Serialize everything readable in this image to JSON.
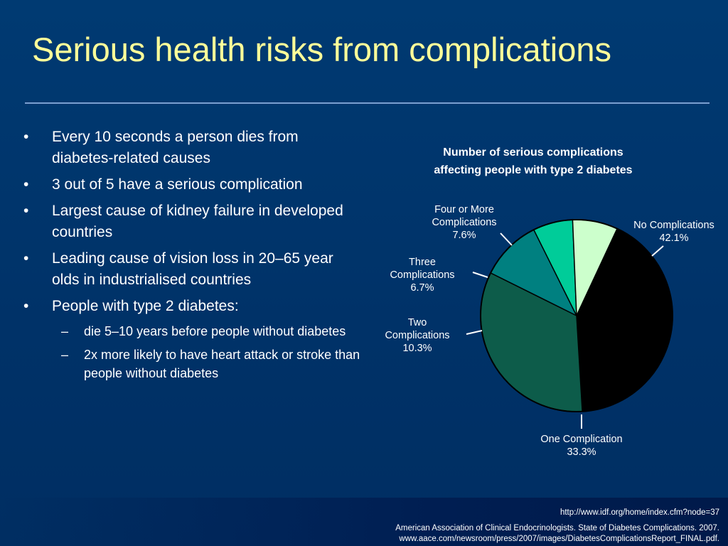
{
  "slide": {
    "title": "Serious health risks from complications",
    "bullets": [
      {
        "level": 1,
        "text": "Every 10 seconds a person dies from diabetes-related causes"
      },
      {
        "level": 1,
        "text": "3 out of 5 have a serious complication"
      },
      {
        "level": 1,
        "text": "Largest cause of kidney failure in developed countries"
      },
      {
        "level": 1,
        "text": "Leading cause of vision loss in 20–65 year olds in industrialised countries"
      },
      {
        "level": 1,
        "text": "People with type 2 diabetes:"
      },
      {
        "level": 2,
        "text": "die 5–10 years before people without diabetes"
      },
      {
        "level": 2,
        "text": "2x more likely to have heart attack or stroke than people without diabetes"
      }
    ],
    "bullet_marks": {
      "level1": "•",
      "level2": "–"
    },
    "footer": {
      "url": "http://www.idf.org/home/index.cfm?node=37",
      "citation_line1": "American Association of Clinical Endocrinologists. State of Diabetes Complications. 2007.",
      "citation_line2": "www.aace.com/newsroom/press/2007/images/DiabetesComplicationsReport_FINAL.pdf."
    },
    "colors": {
      "background": "#003268",
      "title": "#ffff99",
      "text": "#ffffff",
      "rule": "#7b9fd0"
    }
  },
  "chart_data": {
    "type": "pie",
    "title_line1": "Number of serious complications",
    "title_line2": "affecting people with type 2 diabetes",
    "slices": [
      {
        "label_lines": [
          "No Complications"
        ],
        "value": 42.1,
        "value_text": "42.1%",
        "color": "#000000"
      },
      {
        "label_lines": [
          "One Complication"
        ],
        "value": 33.3,
        "value_text": "33.3%",
        "color": "#0d5c4a"
      },
      {
        "label_lines": [
          "Two",
          "Complications"
        ],
        "value": 10.3,
        "value_text": "10.3%",
        "color": "#008080"
      },
      {
        "label_lines": [
          "Three",
          "Complications"
        ],
        "value": 6.7,
        "value_text": "6.7%",
        "color": "#00cc99"
      },
      {
        "label_lines": [
          "Four or More",
          "Complications"
        ],
        "value": 7.6,
        "value_text": "7.6%",
        "color": "#ccffcc"
      }
    ],
    "start_angle_deg": -65,
    "direction": "clockwise",
    "legend": "none"
  }
}
